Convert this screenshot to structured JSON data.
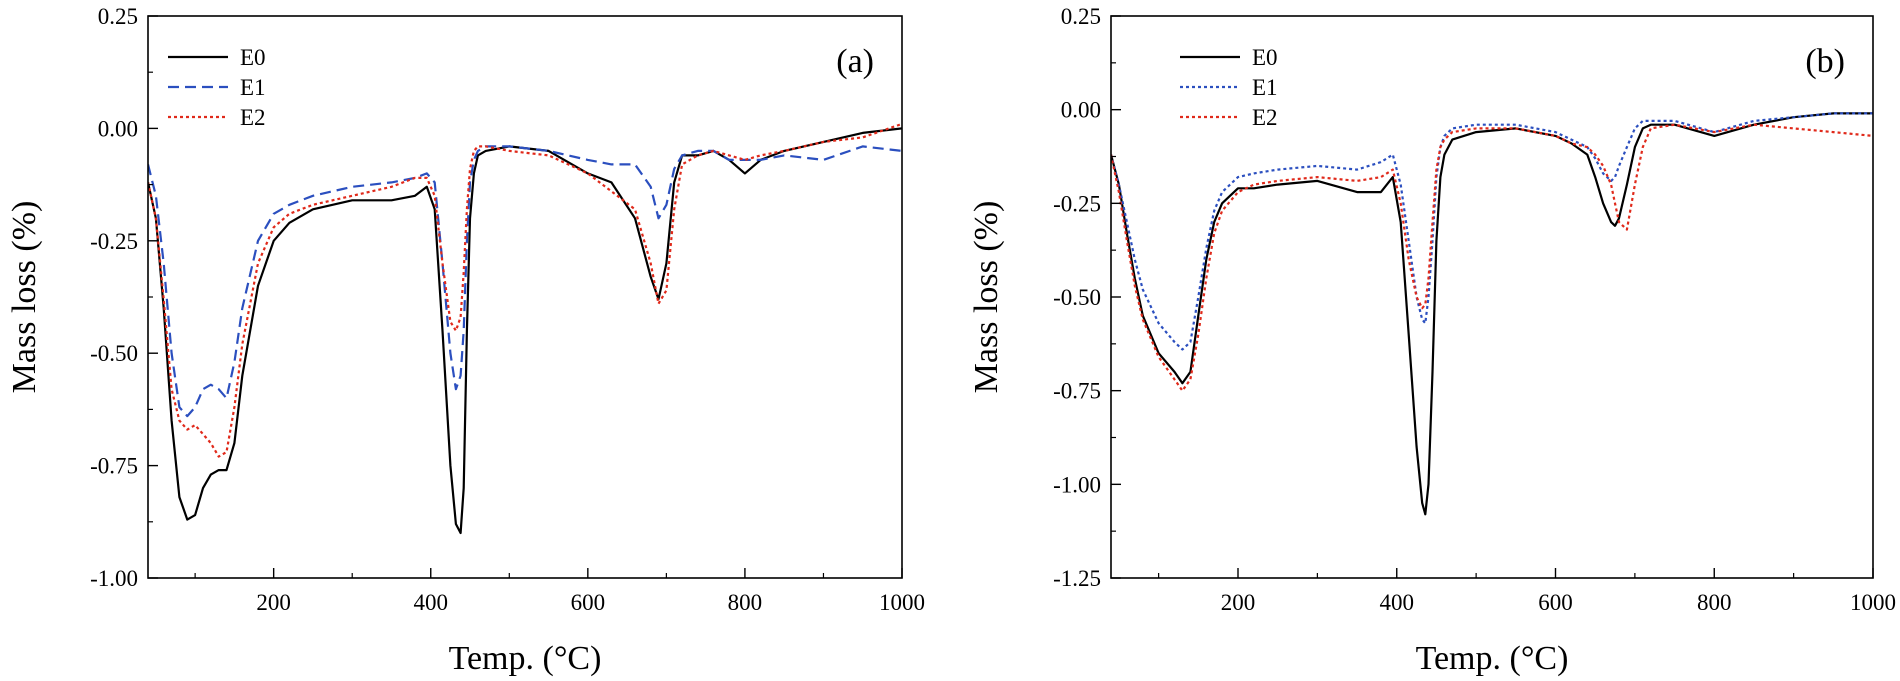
{
  "colors": {
    "E0": "#000000",
    "E1": "#2b4fbf",
    "E2": "#e0291a"
  },
  "chart_data": [
    {
      "type": "line",
      "panel_label": "(a)",
      "xlabel": "Temp. (°C)",
      "ylabel": "Mass loss (%)",
      "xlim": [
        40,
        1000
      ],
      "ylim": [
        -1.0,
        0.25
      ],
      "xticks": [
        200,
        400,
        600,
        800,
        1000
      ],
      "xtick_labels": [
        "200",
        "400",
        "600",
        "800",
        "1000"
      ],
      "yticks": [
        0.25,
        0.0,
        -0.25,
        -0.5,
        -0.75,
        -1.0
      ],
      "ytick_labels": [
        "0.25",
        "0.00",
        "-0.25",
        "-0.50",
        "-0.75",
        "-1.00"
      ],
      "legend": [
        "E0",
        "E1",
        "E2"
      ],
      "legend_position": "top-left",
      "series": [
        {
          "name": "E0",
          "style": "solid",
          "x": [
            40,
            50,
            60,
            70,
            80,
            90,
            100,
            110,
            120,
            130,
            140,
            150,
            160,
            180,
            200,
            220,
            250,
            300,
            350,
            380,
            395,
            405,
            415,
            425,
            432,
            438,
            442,
            446,
            450,
            455,
            460,
            470,
            500,
            550,
            600,
            630,
            660,
            680,
            690,
            700,
            710,
            720,
            740,
            760,
            780,
            800,
            820,
            850,
            900,
            950,
            1000
          ],
          "values": [
            -0.12,
            -0.2,
            -0.4,
            -0.65,
            -0.82,
            -0.87,
            -0.86,
            -0.8,
            -0.77,
            -0.76,
            -0.76,
            -0.7,
            -0.55,
            -0.35,
            -0.25,
            -0.21,
            -0.18,
            -0.16,
            -0.16,
            -0.15,
            -0.13,
            -0.18,
            -0.45,
            -0.75,
            -0.88,
            -0.9,
            -0.8,
            -0.45,
            -0.2,
            -0.1,
            -0.06,
            -0.05,
            -0.04,
            -0.05,
            -0.1,
            -0.12,
            -0.2,
            -0.33,
            -0.38,
            -0.3,
            -0.12,
            -0.06,
            -0.06,
            -0.05,
            -0.07,
            -0.1,
            -0.07,
            -0.05,
            -0.03,
            -0.01,
            0.0
          ]
        },
        {
          "name": "E1",
          "style": "dashed",
          "x": [
            40,
            50,
            60,
            70,
            80,
            90,
            100,
            110,
            120,
            130,
            140,
            150,
            160,
            180,
            200,
            220,
            250,
            300,
            350,
            380,
            395,
            405,
            415,
            425,
            432,
            438,
            442,
            446,
            450,
            455,
            460,
            470,
            500,
            550,
            600,
            630,
            660,
            680,
            690,
            700,
            710,
            720,
            740,
            760,
            780,
            800,
            820,
            850,
            900,
            950,
            1000
          ],
          "values": [
            -0.08,
            -0.15,
            -0.3,
            -0.5,
            -0.62,
            -0.64,
            -0.62,
            -0.58,
            -0.57,
            -0.58,
            -0.6,
            -0.52,
            -0.4,
            -0.25,
            -0.19,
            -0.17,
            -0.15,
            -0.13,
            -0.12,
            -0.11,
            -0.1,
            -0.12,
            -0.3,
            -0.5,
            -0.58,
            -0.55,
            -0.45,
            -0.25,
            -0.12,
            -0.07,
            -0.05,
            -0.04,
            -0.04,
            -0.05,
            -0.07,
            -0.08,
            -0.08,
            -0.13,
            -0.2,
            -0.17,
            -0.09,
            -0.06,
            -0.05,
            -0.05,
            -0.07,
            -0.07,
            -0.07,
            -0.06,
            -0.07,
            -0.04,
            -0.05
          ]
        },
        {
          "name": "E2",
          "style": "dotted",
          "x": [
            40,
            50,
            60,
            70,
            80,
            90,
            100,
            110,
            120,
            130,
            140,
            150,
            160,
            180,
            200,
            220,
            250,
            300,
            350,
            380,
            395,
            405,
            415,
            425,
            432,
            438,
            442,
            446,
            450,
            455,
            460,
            470,
            500,
            550,
            600,
            630,
            660,
            680,
            690,
            700,
            710,
            720,
            740,
            760,
            780,
            800,
            820,
            850,
            900,
            950,
            1000
          ],
          "values": [
            -0.12,
            -0.2,
            -0.38,
            -0.58,
            -0.65,
            -0.67,
            -0.66,
            -0.68,
            -0.7,
            -0.73,
            -0.72,
            -0.62,
            -0.48,
            -0.3,
            -0.22,
            -0.19,
            -0.17,
            -0.15,
            -0.13,
            -0.11,
            -0.11,
            -0.15,
            -0.3,
            -0.43,
            -0.45,
            -0.42,
            -0.32,
            -0.18,
            -0.09,
            -0.05,
            -0.04,
            -0.04,
            -0.05,
            -0.06,
            -0.1,
            -0.14,
            -0.18,
            -0.3,
            -0.39,
            -0.36,
            -0.18,
            -0.08,
            -0.06,
            -0.05,
            -0.06,
            -0.07,
            -0.06,
            -0.05,
            -0.03,
            -0.02,
            0.01
          ]
        }
      ]
    },
    {
      "type": "line",
      "panel_label": "(b)",
      "xlabel": "Temp. (°C)",
      "ylabel": "Mass loss (%)",
      "xlim": [
        40,
        1000
      ],
      "ylim": [
        -1.25,
        0.25
      ],
      "xticks": [
        200,
        400,
        600,
        800,
        1000
      ],
      "xtick_labels": [
        "200",
        "400",
        "600",
        "800",
        "1000"
      ],
      "yticks": [
        0.25,
        0.0,
        -0.25,
        -0.5,
        -0.75,
        -1.0,
        -1.25
      ],
      "ytick_labels": [
        "0.25",
        "0.00",
        "-0.25",
        "-0.50",
        "-0.75",
        "-1.00",
        "-1.25"
      ],
      "legend": [
        "E0",
        "E1",
        "E2"
      ],
      "legend_position": "top-left",
      "series": [
        {
          "name": "E0",
          "style": "solid",
          "x": [
            40,
            50,
            60,
            70,
            80,
            100,
            120,
            130,
            140,
            150,
            160,
            170,
            180,
            200,
            220,
            250,
            300,
            350,
            380,
            395,
            405,
            415,
            425,
            432,
            436,
            440,
            445,
            450,
            455,
            460,
            470,
            500,
            550,
            600,
            620,
            640,
            650,
            660,
            670,
            675,
            680,
            690,
            700,
            710,
            720,
            750,
            800,
            850,
            900,
            950,
            1000
          ],
          "values": [
            -0.12,
            -0.2,
            -0.33,
            -0.45,
            -0.55,
            -0.65,
            -0.7,
            -0.73,
            -0.7,
            -0.55,
            -0.4,
            -0.3,
            -0.25,
            -0.21,
            -0.21,
            -0.2,
            -0.19,
            -0.22,
            -0.22,
            -0.18,
            -0.3,
            -0.6,
            -0.9,
            -1.05,
            -1.08,
            -1.0,
            -0.7,
            -0.35,
            -0.18,
            -0.12,
            -0.08,
            -0.06,
            -0.05,
            -0.07,
            -0.09,
            -0.12,
            -0.18,
            -0.25,
            -0.3,
            -0.31,
            -0.29,
            -0.2,
            -0.1,
            -0.05,
            -0.04,
            -0.04,
            -0.07,
            -0.04,
            -0.02,
            -0.01,
            -0.01
          ]
        },
        {
          "name": "E1",
          "style": "dotted",
          "x": [
            40,
            50,
            60,
            70,
            80,
            100,
            120,
            130,
            140,
            150,
            160,
            170,
            180,
            200,
            220,
            250,
            300,
            350,
            380,
            395,
            405,
            415,
            425,
            432,
            436,
            440,
            445,
            450,
            455,
            460,
            470,
            500,
            550,
            600,
            620,
            640,
            650,
            660,
            670,
            675,
            680,
            690,
            700,
            710,
            720,
            750,
            800,
            850,
            900,
            950,
            1000
          ],
          "values": [
            -0.12,
            -0.2,
            -0.3,
            -0.4,
            -0.48,
            -0.57,
            -0.62,
            -0.64,
            -0.62,
            -0.5,
            -0.37,
            -0.27,
            -0.22,
            -0.18,
            -0.17,
            -0.16,
            -0.15,
            -0.16,
            -0.14,
            -0.12,
            -0.2,
            -0.35,
            -0.5,
            -0.56,
            -0.57,
            -0.5,
            -0.35,
            -0.18,
            -0.1,
            -0.07,
            -0.05,
            -0.04,
            -0.04,
            -0.06,
            -0.08,
            -0.1,
            -0.13,
            -0.17,
            -0.19,
            -0.18,
            -0.15,
            -0.1,
            -0.05,
            -0.03,
            -0.03,
            -0.03,
            -0.06,
            -0.03,
            -0.02,
            -0.01,
            -0.01
          ]
        },
        {
          "name": "E2",
          "style": "dotted",
          "x": [
            40,
            50,
            60,
            70,
            80,
            100,
            120,
            130,
            140,
            150,
            160,
            170,
            180,
            200,
            220,
            250,
            300,
            350,
            380,
            395,
            405,
            415,
            425,
            432,
            436,
            440,
            445,
            450,
            455,
            460,
            470,
            500,
            550,
            600,
            620,
            640,
            650,
            660,
            670,
            675,
            680,
            690,
            700,
            710,
            720,
            750,
            800,
            850,
            900,
            950,
            1000
          ],
          "values": [
            -0.12,
            -0.22,
            -0.35,
            -0.47,
            -0.56,
            -0.66,
            -0.72,
            -0.75,
            -0.72,
            -0.6,
            -0.45,
            -0.33,
            -0.27,
            -0.22,
            -0.2,
            -0.19,
            -0.18,
            -0.19,
            -0.18,
            -0.16,
            -0.25,
            -0.4,
            -0.5,
            -0.53,
            -0.52,
            -0.45,
            -0.3,
            -0.16,
            -0.1,
            -0.08,
            -0.06,
            -0.05,
            -0.05,
            -0.07,
            -0.09,
            -0.1,
            -0.12,
            -0.15,
            -0.2,
            -0.25,
            -0.3,
            -0.32,
            -0.2,
            -0.1,
            -0.05,
            -0.04,
            -0.06,
            -0.04,
            -0.05,
            -0.06,
            -0.07
          ]
        }
      ]
    }
  ]
}
